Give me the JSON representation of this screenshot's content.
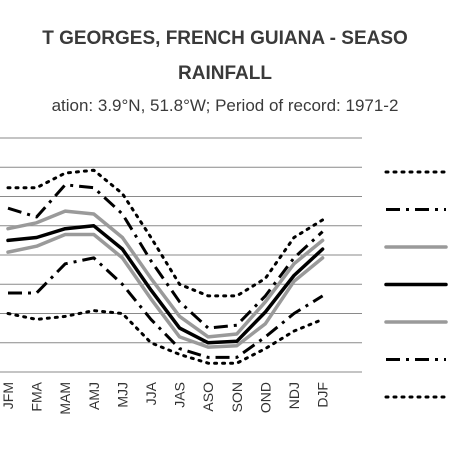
{
  "chart_data": {
    "type": "line",
    "title_line1": "T GEORGES, FRENCH GUIANA - SEASO",
    "title_line2": "RAINFALL",
    "subtitle": "ation: 3.9°N, 51.8°W; Period of record: 1971-2",
    "categories": [
      "JFM",
      "FMA",
      "MAM",
      "AMJ",
      "MJJ",
      "JJA",
      "JAS",
      "ASO",
      "SON",
      "OND",
      "NDJ",
      "DJF"
    ],
    "y_axis": {
      "min": 0,
      "max": 8,
      "gridlines": 8
    },
    "grid": true,
    "legend_position": "right",
    "series": [
      {
        "style": "dotted",
        "color": "#000000",
        "values": [
          6.3,
          6.3,
          6.8,
          6.9,
          6.1,
          4.6,
          3.0,
          2.6,
          2.6,
          3.2,
          4.6,
          5.2
        ]
      },
      {
        "style": "dash-dot",
        "color": "#000000",
        "values": [
          5.6,
          5.3,
          6.4,
          6.3,
          5.4,
          3.8,
          2.4,
          1.5,
          1.6,
          2.6,
          3.9,
          4.8
        ]
      },
      {
        "style": "solid",
        "color": "#9a9a9a",
        "values": [
          4.9,
          5.1,
          5.5,
          5.4,
          4.6,
          3.2,
          1.9,
          1.2,
          1.3,
          2.4,
          3.7,
          4.5
        ]
      },
      {
        "style": "solid",
        "color": "#000000",
        "values": [
          4.5,
          4.6,
          4.9,
          5.0,
          4.2,
          2.8,
          1.5,
          1.0,
          1.05,
          2.05,
          3.3,
          4.2
        ]
      },
      {
        "style": "solid",
        "color": "#9a9a9a",
        "values": [
          4.1,
          4.3,
          4.7,
          4.7,
          3.9,
          2.5,
          1.2,
          0.85,
          0.9,
          1.65,
          3.1,
          3.9
        ]
      },
      {
        "style": "dash-dot",
        "color": "#000000",
        "values": [
          2.7,
          2.7,
          3.7,
          3.9,
          3.0,
          1.8,
          0.8,
          0.5,
          0.5,
          1.2,
          2.0,
          2.6
        ]
      },
      {
        "style": "dotted",
        "color": "#000000",
        "values": [
          2.0,
          1.8,
          1.9,
          2.1,
          2.0,
          1.0,
          0.6,
          0.3,
          0.3,
          0.8,
          1.4,
          1.8
        ]
      }
    ]
  }
}
